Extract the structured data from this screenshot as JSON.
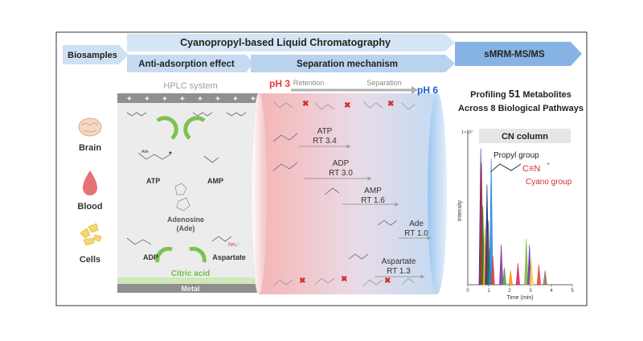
{
  "header": {
    "biosamples": "Biosamples",
    "main_title": "Cyanopropyl-based Liquid Chromatography",
    "anti_adsorption": "Anti-adsorption effect",
    "separation_mechanism": "Separation mechanism",
    "detection": "sMRM-MS/MS"
  },
  "samples": [
    "Brain",
    "Blood",
    "Cells"
  ],
  "hplc": {
    "title": "HPLC system",
    "molecules": [
      "ATP",
      "AMP",
      "Adenosine",
      "(Ade)",
      "ADP",
      "Aspartate"
    ],
    "citric_acid": "Citric acid",
    "metal": "Metal"
  },
  "separation": {
    "ph_low": "pH 3",
    "ph_high": "pH 6",
    "retention": "Retention",
    "separation": "Separation",
    "compounds": [
      {
        "name": "ATP",
        "rt": "RT 3.4"
      },
      {
        "name": "ADP",
        "rt": "RT 3.0"
      },
      {
        "name": "AMP",
        "rt": "RT 1.6"
      },
      {
        "name": "Ade",
        "rt": "RT 1.0"
      },
      {
        "name": "Aspartate",
        "rt": "RT 1.3"
      }
    ]
  },
  "profiling": {
    "line1_prefix": "Profiling ",
    "count": "51",
    "line1_suffix": " Metabolites",
    "line2": "Across 8 Biological Pathways"
  },
  "cn_column": {
    "title": "CN column",
    "propyl": "Propyl group",
    "cyano": "Cyano group"
  },
  "chromatogram": {
    "xlabel": "Time (min)",
    "ylabel": "Intensity",
    "y_scale_label": "1×10⁷",
    "x_ticks": [
      "0",
      "1",
      "2",
      "3",
      "4",
      "5"
    ],
    "peaks": [
      {
        "t": 0.62,
        "h": 0.95,
        "color": "#3a2d8f"
      },
      {
        "t": 0.66,
        "h": 0.85,
        "color": "#c62828"
      },
      {
        "t": 0.72,
        "h": 0.55,
        "color": "#2e7d32"
      },
      {
        "t": 0.82,
        "h": 0.4,
        "color": "#f9a825"
      },
      {
        "t": 0.92,
        "h": 0.7,
        "color": "#1a237e"
      },
      {
        "t": 0.98,
        "h": 0.45,
        "color": "#6d4c41"
      },
      {
        "t": 1.05,
        "h": 0.25,
        "color": "#00897b"
      },
      {
        "t": 1.12,
        "h": 0.88,
        "color": "#1e88e5"
      },
      {
        "t": 1.2,
        "h": 0.2,
        "color": "#e53935"
      },
      {
        "t": 1.6,
        "h": 0.28,
        "color": "#8e24aa"
      },
      {
        "t": 1.75,
        "h": 0.12,
        "color": "#43a047"
      },
      {
        "t": 2.05,
        "h": 0.1,
        "color": "#fb8c00"
      },
      {
        "t": 2.4,
        "h": 0.15,
        "color": "#d81b60"
      },
      {
        "t": 2.8,
        "h": 0.32,
        "color": "#7cb342"
      },
      {
        "t": 2.95,
        "h": 0.28,
        "color": "#5e35b1"
      },
      {
        "t": 3.05,
        "h": 0.18,
        "color": "#fdd835"
      },
      {
        "t": 3.4,
        "h": 0.14,
        "color": "#e53935"
      },
      {
        "t": 3.7,
        "h": 0.1,
        "color": "#8d6e63"
      }
    ]
  },
  "colors": {
    "arrow_light": "#cfe0f3",
    "arrow_mid": "#a9c7e8",
    "arrow_dark": "#7faee0",
    "ph_low": "#e53935",
    "ph_high": "#1e5bd6",
    "cyano": "#d32f2f",
    "citric": "#6bbf44"
  }
}
